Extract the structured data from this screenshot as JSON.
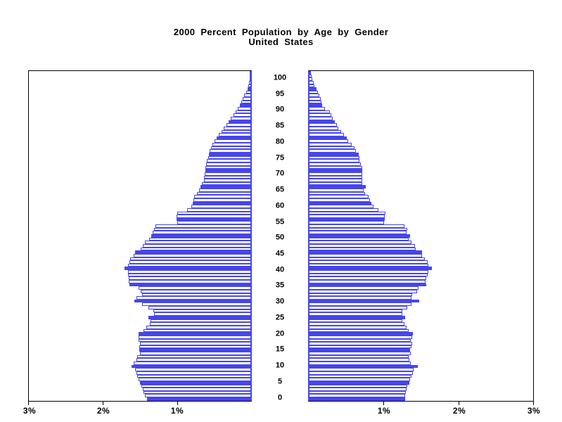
{
  "title": {
    "line1": "2000 Percent Population by Age by Gender",
    "line2": "United States"
  },
  "chart_data": {
    "type": "bar",
    "subtype": "population-pyramid",
    "title": "2000 Percent Population by Age by Gender",
    "subtitle": "United States",
    "unit": "percent of population",
    "age_min": 0,
    "age_max": 100,
    "highlight_every": 5,
    "colors": {
      "bar": "#4646EB",
      "frame": "#000000",
      "background": "#FFFFFF"
    },
    "x_axis": {
      "max_percent": 3,
      "left_ticks": [
        "3%",
        "2%",
        "1%"
      ],
      "right_ticks": [
        "1%",
        "2%",
        "3%"
      ]
    },
    "y_axis": {
      "tick_interval": 5,
      "labels": [
        "0",
        "5",
        "10",
        "15",
        "20",
        "25",
        "30",
        "35",
        "40",
        "45",
        "50",
        "55",
        "60",
        "65",
        "70",
        "75",
        "80",
        "85",
        "90",
        "95",
        "100"
      ]
    },
    "series": [
      {
        "name": "left",
        "values_by_age": [
          1.4,
          1.42,
          1.44,
          1.45,
          1.47,
          1.49,
          1.51,
          1.53,
          1.54,
          1.56,
          1.6,
          1.58,
          1.54,
          1.53,
          1.49,
          1.5,
          1.5,
          1.49,
          1.51,
          1.51,
          1.51,
          1.44,
          1.41,
          1.36,
          1.35,
          1.38,
          1.3,
          1.31,
          1.38,
          1.46,
          1.57,
          1.54,
          1.46,
          1.48,
          1.51,
          1.63,
          1.64,
          1.64,
          1.65,
          1.65,
          1.7,
          1.65,
          1.63,
          1.62,
          1.58,
          1.56,
          1.48,
          1.45,
          1.42,
          1.37,
          1.34,
          1.32,
          1.3,
          1.28,
          0.99,
          1.0,
          1.0,
          0.99,
          0.86,
          0.8,
          0.78,
          0.77,
          0.76,
          0.73,
          0.7,
          0.68,
          0.66,
          0.63,
          0.63,
          0.62,
          0.61,
          0.61,
          0.6,
          0.59,
          0.58,
          0.57,
          0.56,
          0.54,
          0.52,
          0.49,
          0.46,
          0.43,
          0.4,
          0.37,
          0.33,
          0.3,
          0.27,
          0.24,
          0.21,
          0.18,
          0.15,
          0.13,
          0.11,
          0.09,
          0.07,
          0.05,
          0.04,
          0.03,
          0.02,
          0.015,
          0.01
        ]
      },
      {
        "name": "right",
        "values_by_age": [
          1.29,
          1.29,
          1.3,
          1.31,
          1.32,
          1.35,
          1.36,
          1.38,
          1.4,
          1.41,
          1.46,
          1.37,
          1.35,
          1.34,
          1.37,
          1.36,
          1.38,
          1.39,
          1.37,
          1.39,
          1.4,
          1.34,
          1.31,
          1.28,
          1.25,
          1.29,
          1.25,
          1.25,
          1.32,
          1.38,
          1.48,
          1.38,
          1.39,
          1.45,
          1.47,
          1.58,
          1.57,
          1.58,
          1.59,
          1.6,
          1.65,
          1.6,
          1.59,
          1.56,
          1.52,
          1.52,
          1.43,
          1.42,
          1.38,
          1.34,
          1.36,
          1.31,
          1.32,
          1.28,
          1.01,
          1.02,
          1.02,
          1.03,
          0.93,
          0.87,
          0.84,
          0.82,
          0.8,
          0.75,
          0.74,
          0.76,
          0.72,
          0.72,
          0.72,
          0.72,
          0.72,
          0.72,
          0.7,
          0.68,
          0.68,
          0.67,
          0.63,
          0.61,
          0.58,
          0.53,
          0.51,
          0.47,
          0.43,
          0.4,
          0.38,
          0.35,
          0.32,
          0.3,
          0.28,
          0.22,
          0.18,
          0.17,
          0.16,
          0.14,
          0.12,
          0.1,
          0.08,
          0.065,
          0.05,
          0.035,
          0.025
        ]
      }
    ]
  }
}
